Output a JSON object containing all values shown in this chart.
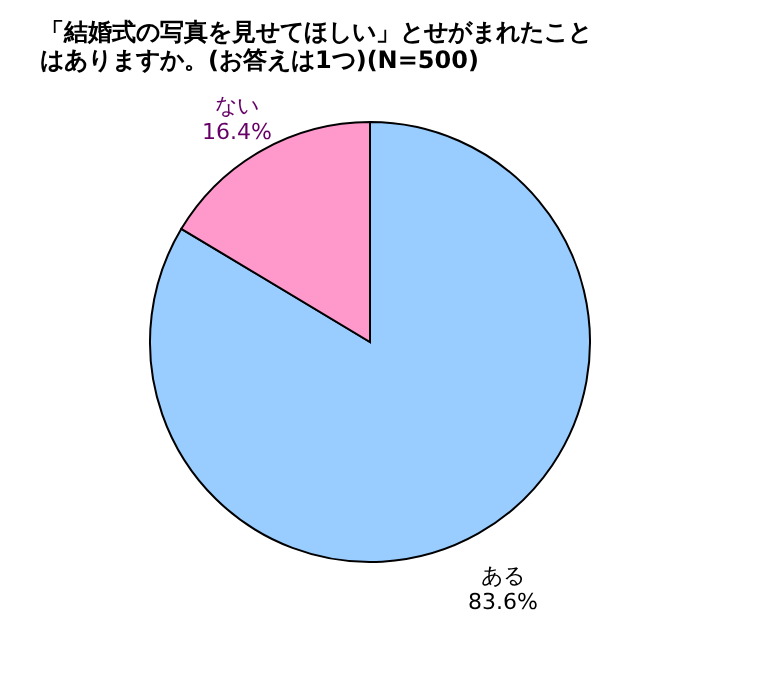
{
  "chart_data": {
    "type": "pie",
    "title": "「結婚式の写真を見せてほしい」とせがまれたことはありますか。(お答えは1つ)(N=500)",
    "categories": [
      "ある",
      "ない"
    ],
    "values": [
      83.6,
      16.4
    ],
    "colors": [
      "#99ccff",
      "#ff99cc"
    ],
    "value_labels": [
      "83.6%",
      "16.4%"
    ],
    "legend": false
  }
}
